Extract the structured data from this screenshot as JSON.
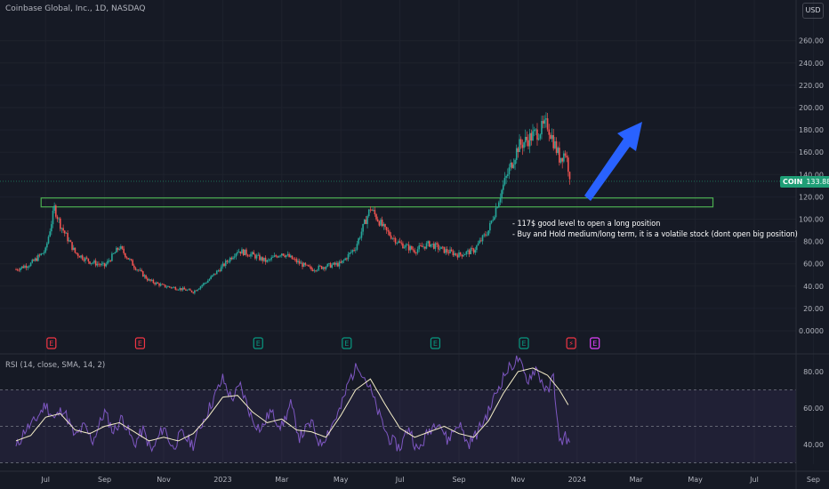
{
  "header": {
    "title": "Coinbase Global, Inc., 1D, NASDAQ",
    "currency_button": "USD"
  },
  "price_tag": {
    "symbol": "COIN",
    "value": "133.88",
    "color": "#1f9e76"
  },
  "annotation": {
    "line1": "- 117$ good level to open a long position",
    "line2": "- Buy and Hold medium/long term, it is a volatile stock (dont open big position)"
  },
  "rsi_panel": {
    "title": "RSI (14, close, SMA, 14, 2)"
  },
  "colors": {
    "background": "#161a25",
    "up": "#26a69a",
    "down": "#ef5350",
    "zone": "#4caf50",
    "arrow": "#2962ff",
    "rsi_line": "#7e57c2",
    "rsi_ma": "#f5eec8",
    "earnings_red": "#f23645",
    "earnings_green": "#089981",
    "dividend_pink": "#e040fb"
  },
  "chart_data": [
    {
      "type": "candlestick",
      "x_ticks": [
        "Jul",
        "Sep",
        "Nov",
        "2023",
        "Mar",
        "May",
        "Jul",
        "Sep",
        "Nov",
        "2024",
        "Mar",
        "May",
        "Jul",
        "Sep"
      ],
      "y_ticks": [
        "260.00",
        "240.00",
        "220.00",
        "200.00",
        "180.00",
        "160.00",
        "140.00",
        "120.00",
        "100.00",
        "80.00",
        "60.00",
        "40.00",
        "20.00",
        "0.0000"
      ],
      "ylim": [
        0,
        260
      ],
      "price_path": {
        "months": [
          6.0,
          6.5,
          7.0,
          7.3,
          7.5,
          8.0,
          8.5,
          9.0,
          9.5,
          10.0,
          10.5,
          11.0,
          11.5,
          12.0,
          12.5,
          13.0,
          13.5,
          14.0,
          14.5,
          15.0,
          15.5,
          16.0,
          16.5,
          17.0,
          17.5,
          18.0,
          18.5,
          19.0,
          19.5,
          20.0,
          20.5,
          21.0,
          21.5,
          22.0,
          22.5,
          23.0,
          23.5,
          24.0,
          24.4,
          24.6,
          24.8
        ],
        "close": [
          55,
          60,
          72,
          110,
          95,
          70,
          62,
          58,
          75,
          58,
          45,
          40,
          38,
          35,
          45,
          58,
          72,
          68,
          62,
          70,
          62,
          55,
          58,
          60,
          75,
          110,
          90,
          78,
          72,
          78,
          72,
          68,
          72,
          90,
          130,
          165,
          175,
          185,
          155,
          160,
          134
        ]
      },
      "support_zone": {
        "low": 111,
        "high": 119
      },
      "last_close": 133.88,
      "earnings_markers": [
        {
          "month": 7.2,
          "type": "red"
        },
        {
          "month": 10.2,
          "type": "red"
        },
        {
          "month": 14.2,
          "type": "green"
        },
        {
          "month": 17.2,
          "type": "green"
        },
        {
          "month": 20.2,
          "type": "green"
        },
        {
          "month": 23.2,
          "type": "green"
        },
        {
          "month": 24.8,
          "type": "dividend"
        },
        {
          "month": 25.6,
          "type": "red-outline"
        }
      ]
    },
    {
      "type": "line",
      "title": "RSI (14, close, SMA, 14, 2)",
      "y_ticks": [
        "80.00",
        "60.00",
        "40.00"
      ],
      "ylim": [
        34,
        85
      ],
      "bands": [
        30,
        70
      ],
      "rsi_ma": {
        "months": [
          6.0,
          6.5,
          7.0,
          7.5,
          8.0,
          8.5,
          9.0,
          9.5,
          10.0,
          10.5,
          11.0,
          11.5,
          12.0,
          12.5,
          13.0,
          13.5,
          14.0,
          14.5,
          15.0,
          15.5,
          16.0,
          16.5,
          17.0,
          17.5,
          18.0,
          18.5,
          19.0,
          19.5,
          20.0,
          20.5,
          21.0,
          21.5,
          22.0,
          22.5,
          23.0,
          23.5,
          24.0,
          24.4,
          24.8
        ],
        "values": [
          42,
          45,
          55,
          57,
          48,
          46,
          50,
          52,
          47,
          42,
          44,
          42,
          46,
          55,
          66,
          67,
          58,
          52,
          54,
          48,
          47,
          44,
          56,
          70,
          76,
          62,
          49,
          44,
          47,
          50,
          46,
          44,
          53,
          68,
          80,
          82,
          78,
          70,
          59
        ]
      },
      "rsi": {
        "months": [
          6.0,
          6.3,
          6.6,
          7.0,
          7.3,
          7.6,
          8.0,
          8.3,
          8.6,
          9.0,
          9.3,
          9.6,
          10.0,
          10.3,
          10.6,
          11.0,
          11.3,
          11.6,
          12.0,
          12.3,
          12.6,
          13.0,
          13.3,
          13.6,
          14.0,
          14.3,
          14.6,
          15.0,
          15.3,
          15.6,
          16.0,
          16.3,
          16.6,
          17.0,
          17.3,
          17.6,
          18.0,
          18.3,
          18.6,
          19.0,
          19.3,
          19.6,
          20.0,
          20.3,
          20.6,
          21.0,
          21.3,
          21.6,
          22.0,
          22.3,
          22.6,
          23.0,
          23.3,
          23.6,
          24.0,
          24.2,
          24.4,
          24.6,
          24.8
        ],
        "values": [
          38,
          48,
          52,
          62,
          54,
          60,
          44,
          50,
          42,
          58,
          47,
          55,
          40,
          48,
          36,
          50,
          38,
          46,
          40,
          52,
          62,
          76,
          65,
          72,
          54,
          48,
          58,
          50,
          62,
          44,
          52,
          40,
          48,
          60,
          76,
          84,
          70,
          56,
          44,
          38,
          50,
          36,
          48,
          54,
          42,
          52,
          40,
          46,
          58,
          70,
          80,
          87,
          75,
          82,
          68,
          78,
          40,
          45,
          38
        ]
      }
    }
  ]
}
